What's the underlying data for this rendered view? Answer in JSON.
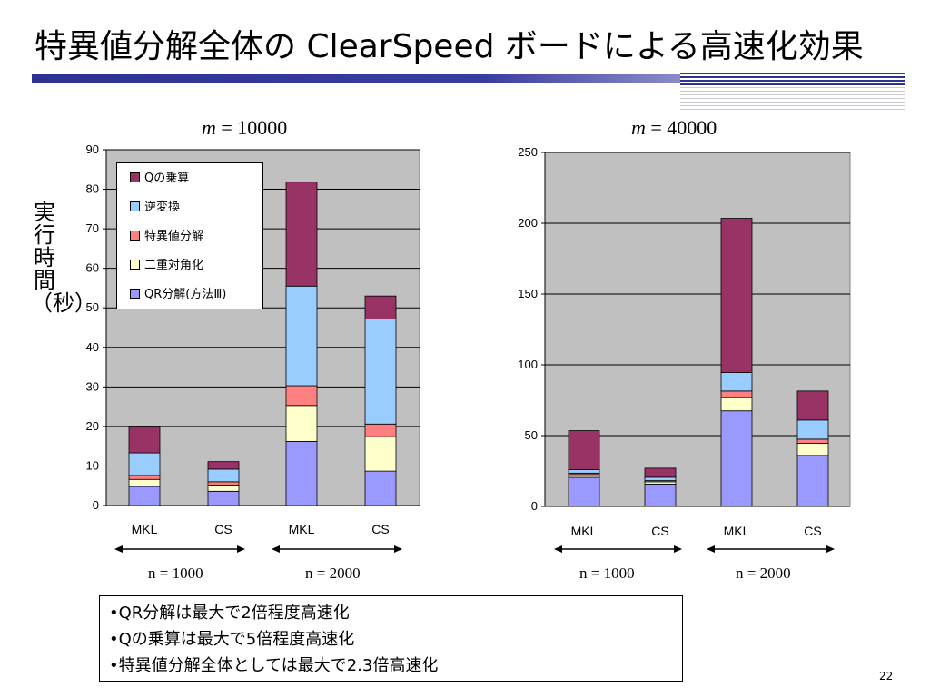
{
  "slide": {
    "title": "特異値分解全体の ClearSpeed ボードによる高速化効果",
    "page_number": "22",
    "ylabel": "実行時間（秒）",
    "notes": [
      "•QR分解は最大で2倍程度高速化",
      "•Qの乗算は最大で5倍程度高速化",
      "•特異値分解全体としては最大で2.3倍高速化"
    ]
  },
  "colors": {
    "title_bar": "#2e3192",
    "plot_bg": "#c0c0c0",
    "series": [
      "#9999ff",
      "#ffffcc",
      "#ff8080",
      "#99ccff",
      "#993366"
    ]
  },
  "legend": {
    "placement": "top-left",
    "entries": [
      "Qの乗算",
      "逆変換",
      "特異値分解",
      "二重対角化",
      "QR分解(方法Ⅲ)"
    ]
  },
  "chart_data": [
    {
      "type": "bar",
      "stacked": true,
      "title_var": "m",
      "title_eq": " = 10000",
      "ylim": [
        0,
        90
      ],
      "yticks": [
        0,
        10,
        20,
        30,
        40,
        50,
        60,
        70,
        80,
        90
      ],
      "grid": true,
      "categories": [
        "MKL",
        "CS",
        "MKL",
        "CS"
      ],
      "groups": [
        {
          "label": "n = 1000",
          "span": [
            0,
            1
          ]
        },
        {
          "label": "n = 2000",
          "span": [
            2,
            3
          ]
        }
      ],
      "series": [
        {
          "name": "QR分解(方法Ⅲ)",
          "values": [
            4.8,
            3.6,
            16.2,
            8.7
          ]
        },
        {
          "name": "二重対角化",
          "values": [
            1.8,
            1.6,
            9.1,
            8.7
          ]
        },
        {
          "name": "特異値分解",
          "values": [
            1.0,
            0.8,
            5.0,
            3.2
          ]
        },
        {
          "name": "逆変換",
          "values": [
            5.7,
            3.2,
            25.2,
            26.6
          ]
        },
        {
          "name": "Qの乗算",
          "values": [
            6.8,
            1.9,
            26.3,
            5.8
          ]
        }
      ]
    },
    {
      "type": "bar",
      "stacked": true,
      "title_var": "m",
      "title_eq": " = 40000",
      "ylim": [
        0,
        250
      ],
      "yticks": [
        0,
        50,
        100,
        150,
        200,
        250
      ],
      "grid": true,
      "categories": [
        "MKL",
        "CS",
        "MKL",
        "CS"
      ],
      "groups": [
        {
          "label": "n = 1000",
          "span": [
            0,
            1
          ]
        },
        {
          "label": "n = 2000",
          "span": [
            2,
            3
          ]
        }
      ],
      "series": [
        {
          "name": "QR分解(方法Ⅲ)",
          "values": [
            20.5,
            15.8,
            67.5,
            36.0
          ]
        },
        {
          "name": "二重対角化",
          "values": [
            2.0,
            1.6,
            9.5,
            8.5
          ]
        },
        {
          "name": "特異値分解",
          "values": [
            1.0,
            0.8,
            4.5,
            3.0
          ]
        },
        {
          "name": "逆変換",
          "values": [
            2.5,
            2.4,
            13.0,
            13.5
          ]
        },
        {
          "name": "Qの乗算",
          "values": [
            27.5,
            6.4,
            109.0,
            20.5
          ]
        }
      ]
    }
  ]
}
